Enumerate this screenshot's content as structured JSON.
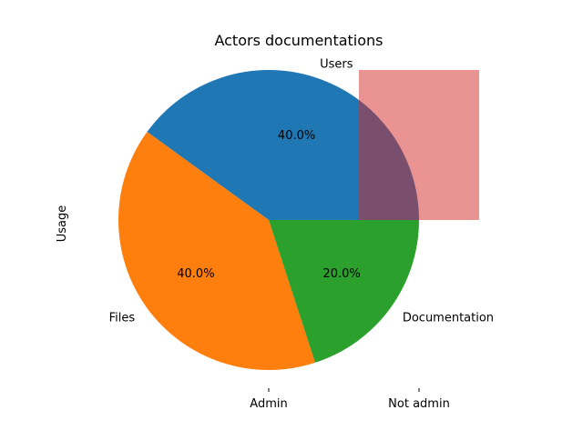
{
  "chart_data": {
    "type": "pie",
    "title": "Actors documentations",
    "ylabel": "Usage",
    "slices": [
      {
        "label": "Users",
        "value": 40,
        "pct_label": "40.0%",
        "color": "#1f77b4"
      },
      {
        "label": "Files",
        "value": 40,
        "pct_label": "40.0%",
        "color": "#ff7f0e"
      },
      {
        "label": "Documentation",
        "value": 20,
        "pct_label": "20.0%",
        "color": "#2ca02c"
      }
    ],
    "start_angle_deg": 0,
    "direction": "counterclockwise",
    "x_ticks": [
      "Admin",
      "Not admin"
    ],
    "overlay": {
      "shape": "rectangle",
      "color": "#d62728",
      "opacity": 0.5
    },
    "grid": false,
    "legend": "none"
  }
}
